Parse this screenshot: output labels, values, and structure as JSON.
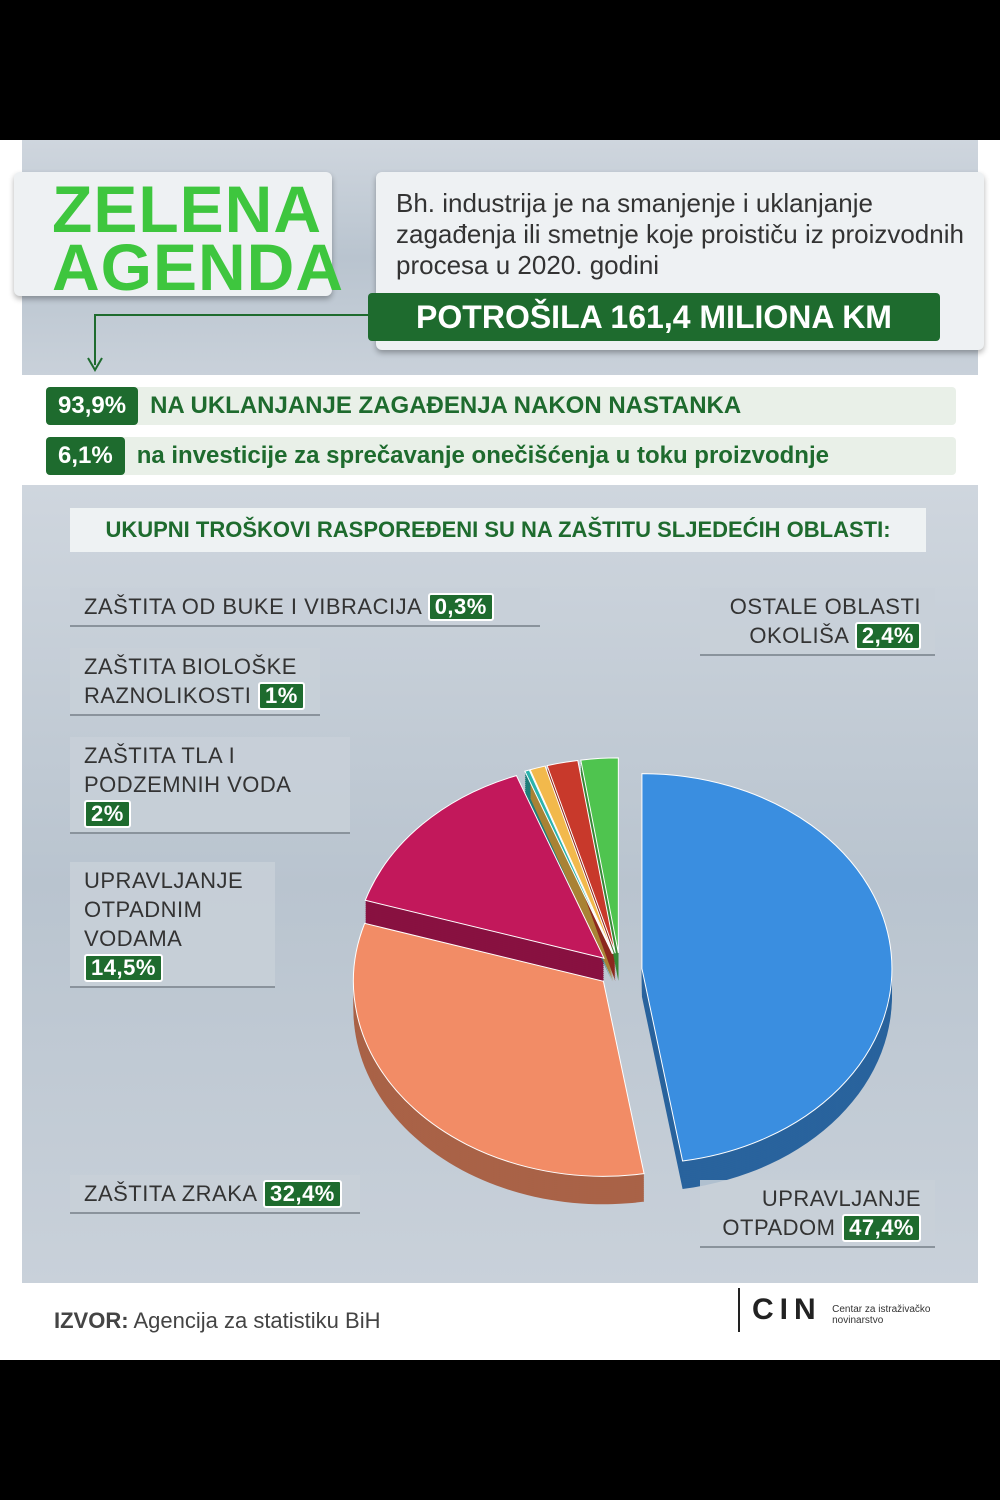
{
  "header": {
    "logo_line1": "ZELENA",
    "logo_line2": "AGENDA",
    "intro": "Bh. industrija je na smanjenje i uklanjanje zagađenja ili smetnje koje proističu iz proizvodnih procesa u 2020. godini",
    "highlight": "POTROŠILA 161,4 MILIONA KM"
  },
  "split": [
    {
      "label": "93,9%",
      "text": "NA UKLANJANJE ZAGAĐENJA NAKON NASTANKA"
    },
    {
      "label": "6,1%",
      "text": "na investicije za sprečavanje onečišćenja u toku proizvodnje"
    }
  ],
  "chart_data": {
    "type": "pie",
    "title": "UKUPNI TROŠKOVI RASPOREĐENI SU NA ZAŠTITU SLJEDEĆIH OBLASTI:",
    "categories": [
      "UPRAVLJANJE OTPADOM",
      "ZAŠTITA ZRAKA",
      "UPRAVLJANJE OTPADNIM VODAMA",
      "ZAŠTITA OD BUKE I VIBRACIJA",
      "ZAŠTITA BIOLOŠKE RAZNOLIKOSTI",
      "ZAŠTITA TLA I PODZEMNIH VODA",
      "OSTALE OBLASTI OKOLIŠA"
    ],
    "values": [
      47.4,
      32.4,
      14.5,
      0.3,
      1,
      2,
      2.4
    ],
    "value_labels": [
      "47,4%",
      "32,4%",
      "14,5%",
      "0,3%",
      "1%",
      "2%",
      "2,4%"
    ],
    "colors": [
      "#3a8ee0",
      "#f28c66",
      "#c2185b",
      "#2bb3ad",
      "#f2b94c",
      "#c8392b",
      "#4fc44f"
    ]
  },
  "footer": {
    "source_label": "IZVOR:",
    "source": "Agencija za statistiku BiH",
    "logo": "CIN",
    "logo_sub": "Centar za istraživačko novinarstvo"
  }
}
